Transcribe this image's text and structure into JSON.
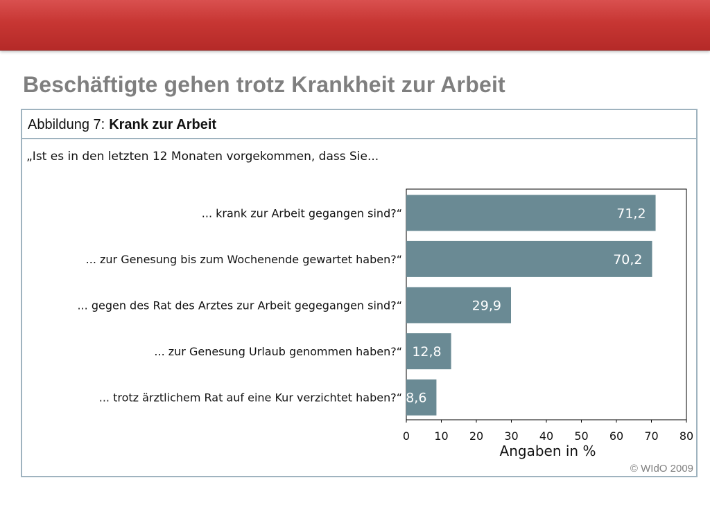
{
  "slide": {
    "title": "Beschäftigte gehen trotz Krankheit zur Arbeit",
    "figure_label": "Abbildung 7:",
    "figure_name": "Krank zur Arbeit",
    "question": "„Ist es in den letzten 12 Monaten vorgekommen, dass Sie...",
    "copyright": "© WIdO 2009"
  },
  "colors": {
    "banner": "#c73633",
    "bar": "#6a8a94",
    "frame": "#9fb3bf",
    "title": "#7f7f7f"
  },
  "chart_data": {
    "type": "bar",
    "orientation": "horizontal",
    "categories": [
      "... krank zur Arbeit gegangen sind?“",
      "... zur Genesung bis zum Wochenende gewartet haben?“",
      "... gegen des Rat des Arztes zur Arbeit gegegangen sind?“",
      "... zur Genesung Urlaub genommen haben?“",
      "... trotz ärztlichem Rat auf eine Kur verzichtet haben?“"
    ],
    "values": [
      71.2,
      70.2,
      29.9,
      12.8,
      8.6
    ],
    "value_labels": [
      "71,2",
      "70,2",
      "29,9",
      "12,8",
      "8,6"
    ],
    "xlabel": "Angaben in %",
    "xlim": [
      0,
      80
    ],
    "xticks": [
      0,
      10,
      20,
      30,
      40,
      50,
      60,
      70,
      80
    ],
    "grid": false,
    "legend": "none"
  }
}
